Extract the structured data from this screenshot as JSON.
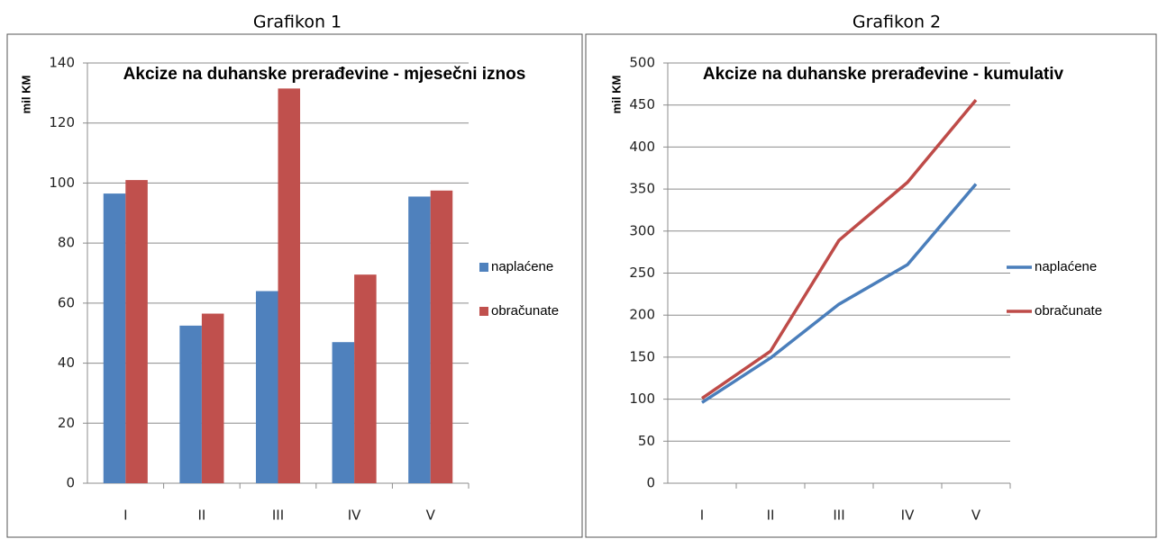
{
  "chart_data": [
    {
      "type": "bar",
      "caption": "Grafikon 1",
      "title": "Akcize na duhanske prerađevine - mjesečni iznos",
      "y_label": "mil KM",
      "categories": [
        "I",
        "II",
        "III",
        "IV",
        "V"
      ],
      "series": [
        {
          "name": "naplaćene",
          "color": "#4f81bd",
          "values": [
            96.5,
            52.5,
            64,
            47,
            95.5
          ]
        },
        {
          "name": "obračunate",
          "color": "#c0504d",
          "values": [
            101,
            56.5,
            131.5,
            69.5,
            97.5
          ]
        }
      ],
      "ylim": [
        0,
        140
      ],
      "yticks": [
        0,
        20,
        40,
        60,
        80,
        100,
        120,
        140
      ],
      "grid": true,
      "legend": "right"
    },
    {
      "type": "line",
      "caption": "Grafikon 2",
      "title": "Akcize na duhanske prerađevine - kumulativ",
      "y_label": "mil KM",
      "categories": [
        "I",
        "II",
        "III",
        "IV",
        "V"
      ],
      "series": [
        {
          "name": "naplaćene",
          "color": "#4a7ebb",
          "values": [
            96,
            149,
            213,
            260,
            356
          ]
        },
        {
          "name": "obračunate",
          "color": "#be4b48",
          "values": [
            101,
            157,
            289,
            358,
            456
          ]
        }
      ],
      "ylim": [
        0,
        500
      ],
      "yticks": [
        0,
        50,
        100,
        150,
        200,
        250,
        300,
        350,
        400,
        450,
        500
      ],
      "grid": true,
      "legend": "right"
    }
  ]
}
